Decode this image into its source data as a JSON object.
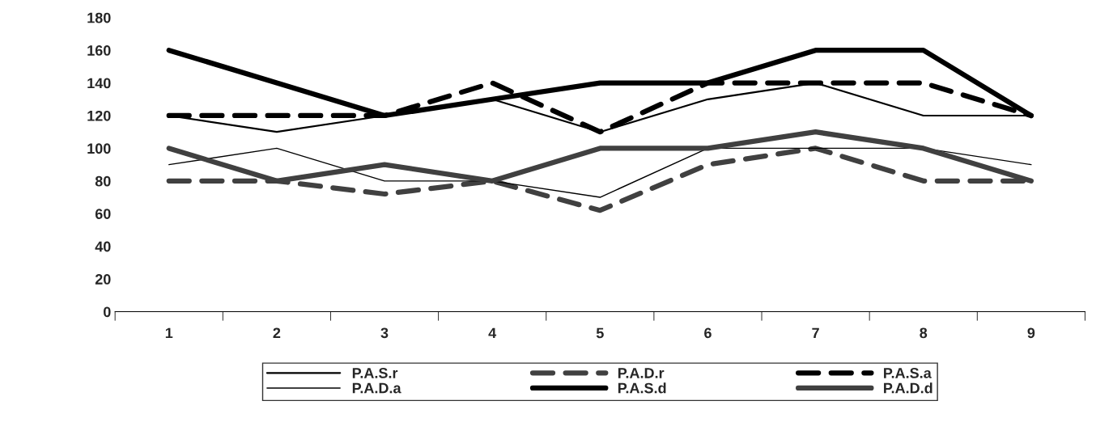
{
  "chart_data": {
    "type": "line",
    "categories": [
      "1",
      "2",
      "3",
      "4",
      "5",
      "6",
      "7",
      "8",
      "9"
    ],
    "ylim": [
      0,
      180
    ],
    "yticks": [
      0,
      20,
      40,
      60,
      80,
      100,
      120,
      140,
      160,
      180
    ],
    "grid": false,
    "legend": "bottom",
    "marker": "none",
    "series": [
      {
        "name": "P.A.S.r",
        "color": "#000000",
        "line_style": "solid",
        "values": [
          120,
          110,
          120,
          130,
          110,
          130,
          140,
          120,
          120
        ]
      },
      {
        "name": "P.A.D.r",
        "color": "#404040",
        "line_style": "dashed",
        "values": [
          80,
          80,
          72,
          80,
          62,
          90,
          100,
          80,
          80
        ]
      },
      {
        "name": "P.A.S.a",
        "color": "#000000",
        "line_style": "dashed",
        "values": [
          120,
          120,
          120,
          140,
          110,
          140,
          140,
          140,
          120
        ]
      },
      {
        "name": "P.A.D.a",
        "color": "#000000",
        "line_style": "solid",
        "values": [
          90,
          100,
          80,
          80,
          70,
          100,
          100,
          100,
          90
        ]
      },
      {
        "name": "P.A.S.d",
        "color": "#000000",
        "line_style": "solid",
        "values": [
          160,
          140,
          120,
          130,
          140,
          140,
          160,
          160,
          120
        ]
      },
      {
        "name": "P.A.D.d",
        "color": "#404040",
        "line_style": "solid",
        "values": [
          100,
          80,
          90,
          80,
          100,
          100,
          110,
          100,
          80
        ]
      }
    ]
  }
}
